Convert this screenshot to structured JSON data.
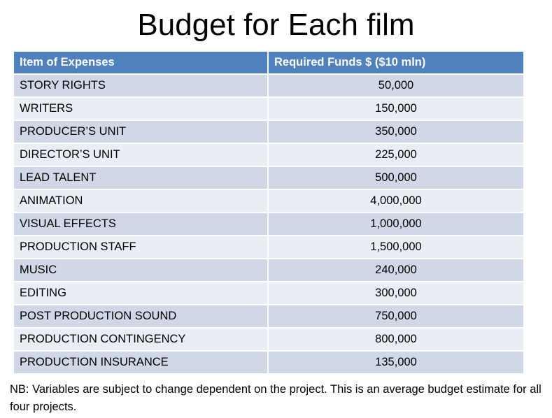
{
  "title": "Budget for Each film",
  "table": {
    "headers": [
      "Item of Expenses",
      "Required Funds $ ($10 mln)"
    ],
    "rows": [
      [
        "STORY RIGHTS",
        "50,000"
      ],
      [
        "WRITERS",
        "150,000"
      ],
      [
        "PRODUCER’S UNIT",
        "350,000"
      ],
      [
        "DIRECTOR’S UNIT",
        "225,000"
      ],
      [
        "LEAD TALENT",
        "500,000"
      ],
      [
        "ANIMATION",
        "4,000,000"
      ],
      [
        "VISUAL EFFECTS",
        "1,000,000"
      ],
      [
        "PRODUCTION STAFF",
        "1,500,000"
      ],
      [
        "MUSIC",
        "240,000"
      ],
      [
        "EDITING",
        "300,000"
      ],
      [
        "POST PRODUCTION SOUND",
        "750,000"
      ],
      [
        "PRODUCTION CONTINGENCY",
        "800,000"
      ],
      [
        "PRODUCTION INSURANCE",
        "135,000"
      ]
    ]
  },
  "note": "NB: Variables are subject to change dependent on the project. This is an average budget estimate for all four projects.",
  "colors": {
    "header_bg": "#4f81bd",
    "row_odd": "#d0d8e8",
    "row_even": "#e9edf4"
  }
}
